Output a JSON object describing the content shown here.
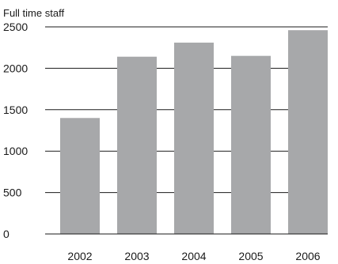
{
  "chart_data": {
    "type": "bar",
    "title": "Full time staff",
    "xlabel": "",
    "ylabel": "",
    "categories": [
      "2002",
      "2003",
      "2004",
      "2005",
      "2006"
    ],
    "values": [
      1400,
      2140,
      2310,
      2150,
      2460
    ],
    "ylim": [
      0,
      2500
    ],
    "yticks": [
      0,
      500,
      1000,
      1500,
      2000,
      2500
    ],
    "ytick_labels": [
      "0",
      "500",
      "1000",
      "1500",
      "2000",
      "2500"
    ],
    "grid": "horizontal",
    "legend": "none",
    "colors": {
      "bar": "#a7a8aa",
      "grid": "#1a1a1a",
      "text": "#1a1a1a"
    }
  }
}
